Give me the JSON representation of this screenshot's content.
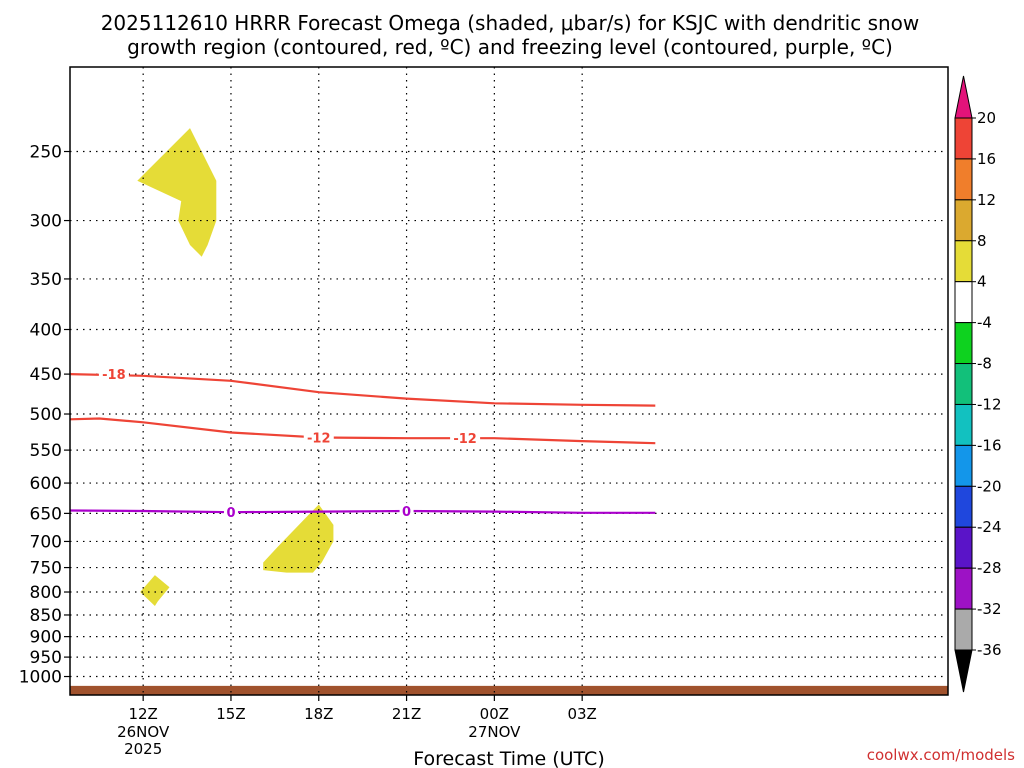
{
  "title_line1": "2025112610 HRRR Forecast Omega (shaded, μbar/s) for KSJC with dendritic snow",
  "title_line2": "growth region (contoured, red, ºC) and freezing level (contoured, purple, ºC)",
  "credit": "coolwx.com/models",
  "chart_data": {
    "type": "time-height",
    "xlabel": "Forecast Time (UTC)",
    "x_range_hours": [
      -2.5,
      27.5
    ],
    "x_ticks": [
      {
        "hour": 0,
        "label": "12Z",
        "sub": [
          "26NOV",
          "2025"
        ]
      },
      {
        "hour": 3,
        "label": "15Z",
        "sub": []
      },
      {
        "hour": 6,
        "label": "18Z",
        "sub": []
      },
      {
        "hour": 9,
        "label": "21Z",
        "sub": []
      },
      {
        "hour": 12,
        "label": "00Z",
        "sub": [
          "27NOV"
        ]
      },
      {
        "hour": 15,
        "label": "03Z",
        "sub": []
      }
    ],
    "y_unit": "hPa",
    "y_log_scale": true,
    "y_range_hpa": [
      1050,
      200
    ],
    "y_ticks": [
      250,
      300,
      350,
      400,
      450,
      500,
      550,
      600,
      650,
      700,
      750,
      800,
      850,
      900,
      950,
      1000
    ],
    "grid": "dotted",
    "shaded_omega_regions": [
      {
        "range": "4 to 8",
        "color": "#e5dc37",
        "polygon": [
          [
            -0.2,
            270
          ],
          [
            1.6,
            235
          ],
          [
            2.5,
            270
          ],
          [
            2.5,
            300
          ],
          [
            2.2,
            320
          ],
          [
            2.0,
            330
          ],
          [
            1.6,
            320
          ],
          [
            1.2,
            300
          ],
          [
            1.3,
            285
          ]
        ]
      },
      {
        "range": "4 to 8",
        "color": "#e5dc37",
        "polygon": [
          [
            4.1,
            755
          ],
          [
            4.1,
            740
          ],
          [
            4.6,
            710
          ],
          [
            5.7,
            650
          ],
          [
            6.0,
            635
          ],
          [
            6.5,
            670
          ],
          [
            6.5,
            700
          ],
          [
            6.1,
            740
          ],
          [
            5.8,
            760
          ],
          [
            4.9,
            760
          ]
        ]
      },
      {
        "range": "4 to 8",
        "color": "#e5dc37",
        "polygon": [
          [
            -0.1,
            800
          ],
          [
            0.4,
            765
          ],
          [
            0.9,
            790
          ],
          [
            0.5,
            820
          ],
          [
            0.4,
            830
          ]
        ]
      }
    ],
    "contours": [
      {
        "name": "-18",
        "color": "#ee4436",
        "points": [
          [
            -2.5,
            450
          ],
          [
            0,
            452
          ],
          [
            3,
            458
          ],
          [
            6,
            472
          ],
          [
            9,
            480
          ],
          [
            12,
            486
          ],
          [
            15,
            488
          ],
          [
            17.5,
            489
          ]
        ],
        "label_at": [
          [
            -1.0,
            450
          ]
        ]
      },
      {
        "name": "-12",
        "color": "#ee4436",
        "points": [
          [
            -2.5,
            507
          ],
          [
            -1.5,
            506
          ],
          [
            0,
            511
          ],
          [
            3,
            525
          ],
          [
            6,
            532
          ],
          [
            9,
            533
          ],
          [
            12,
            533
          ],
          [
            15,
            537
          ],
          [
            17.5,
            540
          ]
        ],
        "label_at": [
          [
            6.0,
            532
          ],
          [
            11.0,
            533
          ]
        ]
      },
      {
        "name": "0",
        "color": "#aa00cc",
        "points": [
          [
            -2.5,
            645
          ],
          [
            0,
            646
          ],
          [
            3,
            648
          ],
          [
            6,
            647
          ],
          [
            9,
            646
          ],
          [
            12,
            647
          ],
          [
            15,
            649
          ],
          [
            17.5,
            649
          ]
        ],
        "label_at": [
          [
            3.0,
            648
          ],
          [
            9.0,
            646
          ]
        ]
      }
    ],
    "ground": {
      "color": "#a0522d",
      "top_hpa": 1025
    },
    "colorbar": {
      "unit": "μbar/s",
      "extend_top_color": "#e3137a",
      "extend_bottom_color": "#000000",
      "bins": [
        {
          "color": "#ee4436"
        },
        {
          "color": "#f07e2b"
        },
        {
          "color": "#dba92f"
        },
        {
          "color": "#e5dc37"
        },
        {
          "color": "#ffffff"
        },
        {
          "color": "#0ed21f"
        },
        {
          "color": "#12c07a"
        },
        {
          "color": "#12c1c0"
        },
        {
          "color": "#1396ea"
        },
        {
          "color": "#1f47dd"
        },
        {
          "color": "#5a14c8"
        },
        {
          "color": "#9d12c5"
        },
        {
          "color": "#aaaaaa"
        }
      ],
      "labels": [
        "20",
        "16",
        "12",
        "8",
        "4",
        "-4",
        "-8",
        "-12",
        "-16",
        "-20",
        "-24",
        "-28",
        "-32",
        "-36"
      ]
    }
  }
}
